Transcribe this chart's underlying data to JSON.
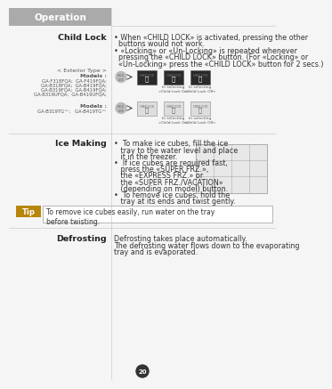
{
  "title": "Operation",
  "title_bg": "#aaaaaa",
  "title_color": "#ffffff",
  "bg_color": "#f5f5f5",
  "page_number": "20",
  "child_lock_label": "Child Lock",
  "child_lock_text": [
    "• When «CHILD LOCK» is activated, pressing the other",
    "  buttons would not work.",
    "• «Locking» or «Un-Locking» is repeated whenever",
    "  pressing the «CHILD LOCK» button. (For «Locking» or",
    "  «Un-Locking» press the «CHILD LOCK» button for 2 secs.)"
  ],
  "exterior_type": "< Exterior Type >",
  "models1_title": "Models :",
  "models1_list": [
    "GA-F318FQA;  GA-F419FQA;",
    "GA-B318FQA;  GA-B419FQA;",
    "GA-B319FQA;  GA-B419FQA;",
    "GA-B319UFQA;  GA-B419UFQA;"
  ],
  "models2_title": "Models :",
  "models2_list": [
    "GA-B319TG™;   GA-B419TG™"
  ],
  "ice_making_label": "Ice Making",
  "ice_making_text": [
    "•  To make ice cubes, fill the ice",
    "   tray to the water level and place",
    "   it in the freezer.",
    "•  If ice cubes are required fast,",
    "   press the «SUPER FRZ.»,",
    "   the «EXPRESS FRZ.» or",
    "   the «SUPER FRZ./VACATION»",
    "   (depending on model) button.",
    "•  To remove ice cubes, hold the",
    "   tray at its ends and twist gently."
  ],
  "tip_label": "Tip",
  "tip_bg": "#b8860b",
  "tip_text": "To remove ice cubes easily, run water on the tray\nbefore twisting.",
  "defrosting_label": "Defrosting",
  "defrosting_text": [
    "Defrosting takes place automatically.",
    "The defrosting water flows down to the evaporating",
    "tray and is evaporated."
  ],
  "separator_color": "#cccccc",
  "label_color": "#222222",
  "text_color": "#333333",
  "body_fontsize": 5.8,
  "label_fontsize": 6.8,
  "small_fontsize": 4.5
}
